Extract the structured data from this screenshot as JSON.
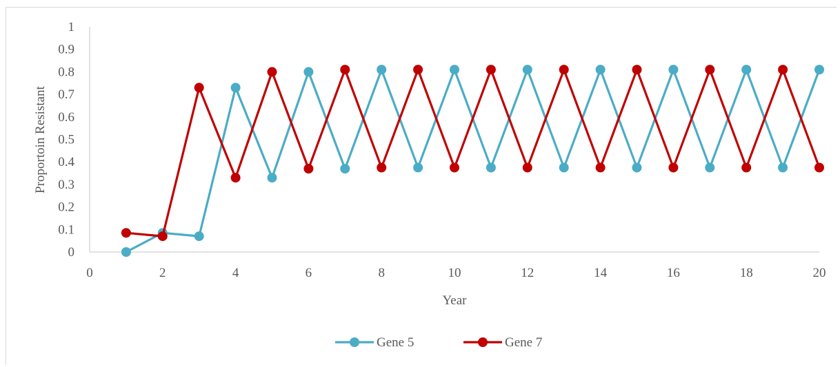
{
  "chart_data": {
    "type": "line",
    "xlabel": "Year",
    "ylabel": "Proportoin Resistant",
    "xlim": [
      0,
      20
    ],
    "ylim": [
      0,
      1
    ],
    "x_ticks": [
      "0",
      "2",
      "4",
      "6",
      "8",
      "10",
      "12",
      "14",
      "16",
      "18",
      "20"
    ],
    "y_ticks": [
      "0",
      "0.1",
      "0.2",
      "0.3",
      "0.4",
      "0.5",
      "0.6",
      "0.7",
      "0.8",
      "0.9",
      "1"
    ],
    "grid": false,
    "legend_position": "bottom",
    "x": [
      1,
      2,
      3,
      4,
      5,
      6,
      7,
      8,
      9,
      10,
      11,
      12,
      13,
      14,
      15,
      16,
      17,
      18,
      19,
      20
    ],
    "series": [
      {
        "name": "Gene 5",
        "color": "#4BACC6",
        "values": [
          0,
          0.085,
          0.07,
          0.73,
          0.33,
          0.8,
          0.37,
          0.81,
          0.375,
          0.81,
          0.375,
          0.81,
          0.375,
          0.81,
          0.375,
          0.81,
          0.375,
          0.81,
          0.375,
          0.81
        ]
      },
      {
        "name": "Gene 7",
        "color": "#C00000",
        "values": [
          0.085,
          0.07,
          0.73,
          0.33,
          0.8,
          0.37,
          0.81,
          0.375,
          0.81,
          0.375,
          0.81,
          0.375,
          0.81,
          0.375,
          0.81,
          0.375,
          0.81,
          0.375,
          0.81,
          0.375
        ]
      }
    ]
  }
}
